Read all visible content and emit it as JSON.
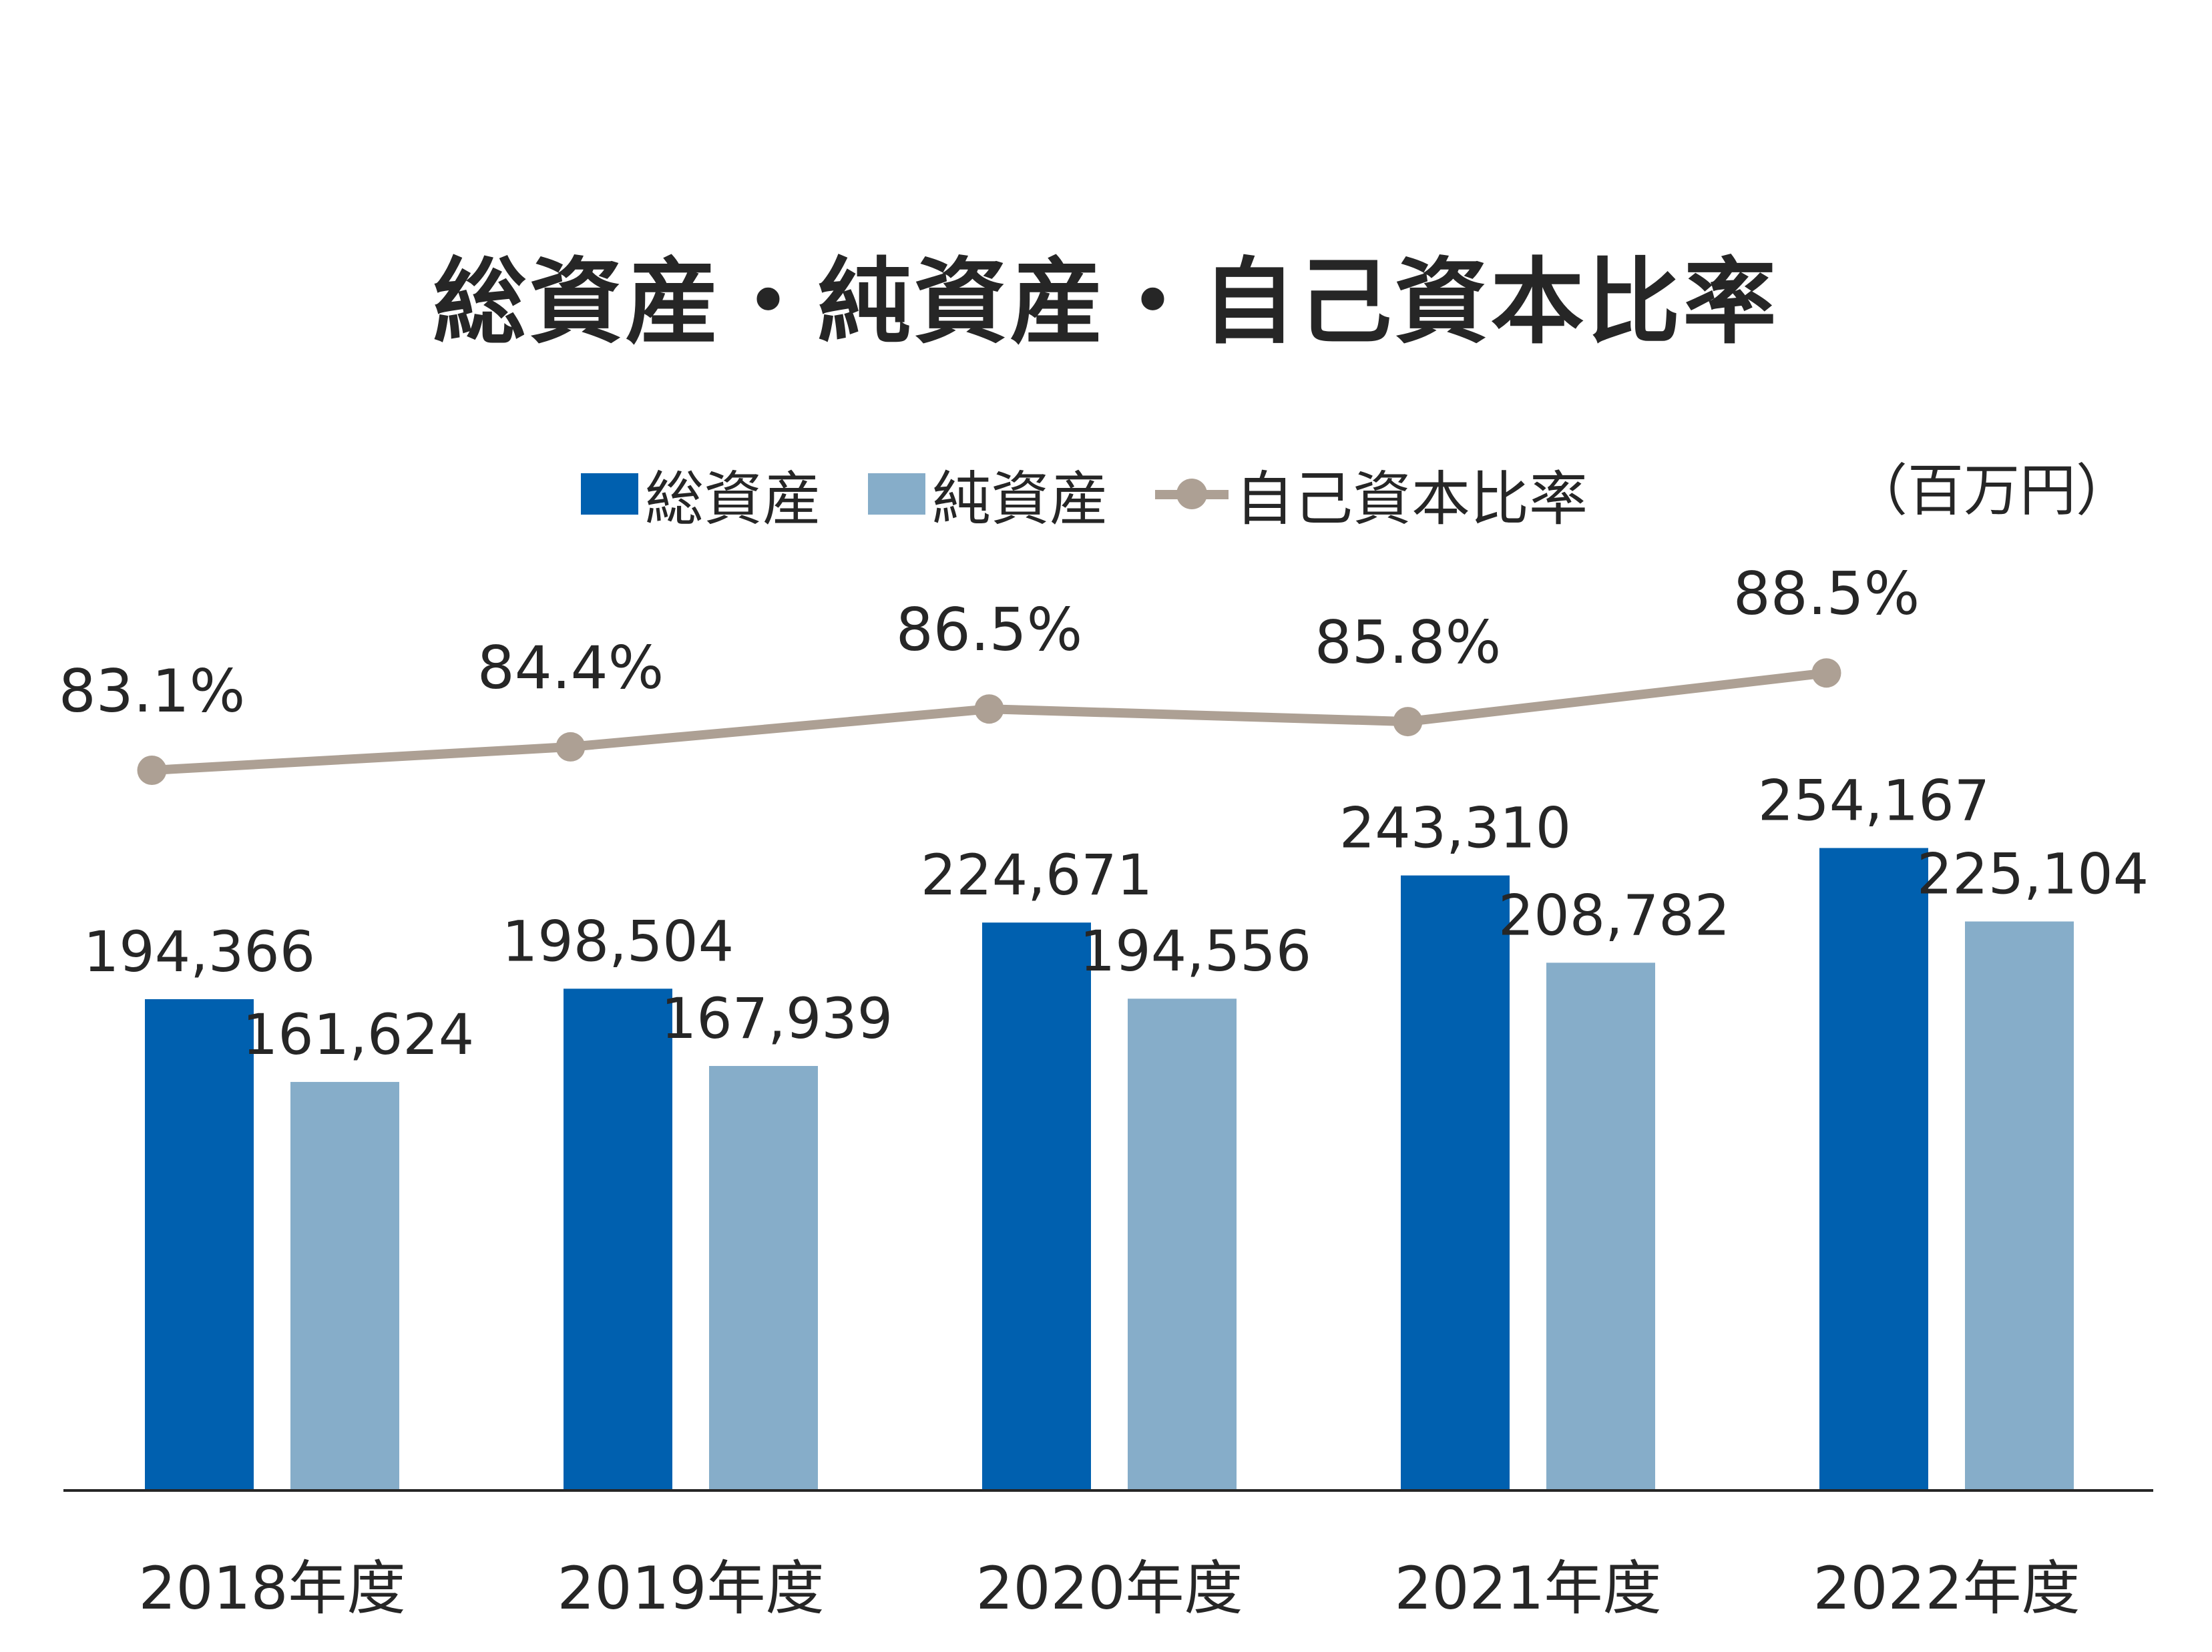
{
  "title": "総資産・純資産・自己資本比率",
  "unit": "（百万円）",
  "legend": {
    "total_assets": "総資産",
    "net_assets": "純資産",
    "equity_ratio": "自己資本比率"
  },
  "colors": {
    "total_assets": "#0060AF",
    "net_assets": "#86ADC9",
    "equity_ratio": "#ADA094"
  },
  "chart_data": {
    "type": "bar",
    "title": "総資産・純資産・自己資本比率",
    "categories": [
      "2018年度",
      "2019年度",
      "2020年度",
      "2021年度",
      "2022年度"
    ],
    "series": [
      {
        "name": "総資産",
        "type": "bar",
        "values": [
          194366,
          198504,
          224671,
          243310,
          254167
        ],
        "labels": [
          "194,366",
          "198,504",
          "224,671",
          "243,310",
          "254,167"
        ]
      },
      {
        "name": "純資産",
        "type": "bar",
        "values": [
          161624,
          167939,
          194556,
          208782,
          225104
        ],
        "labels": [
          "161,624",
          "167,939",
          "194,556",
          "208,782",
          "225,104"
        ]
      },
      {
        "name": "自己資本比率",
        "type": "line",
        "values": [
          83.1,
          84.4,
          86.5,
          85.8,
          88.5
        ],
        "labels": [
          "83.1%",
          "84.4%",
          "86.5%",
          "85.8%",
          "88.5%"
        ]
      }
    ],
    "ylim": [
      0,
      262000
    ],
    "grid": false,
    "legend_position": "top"
  }
}
